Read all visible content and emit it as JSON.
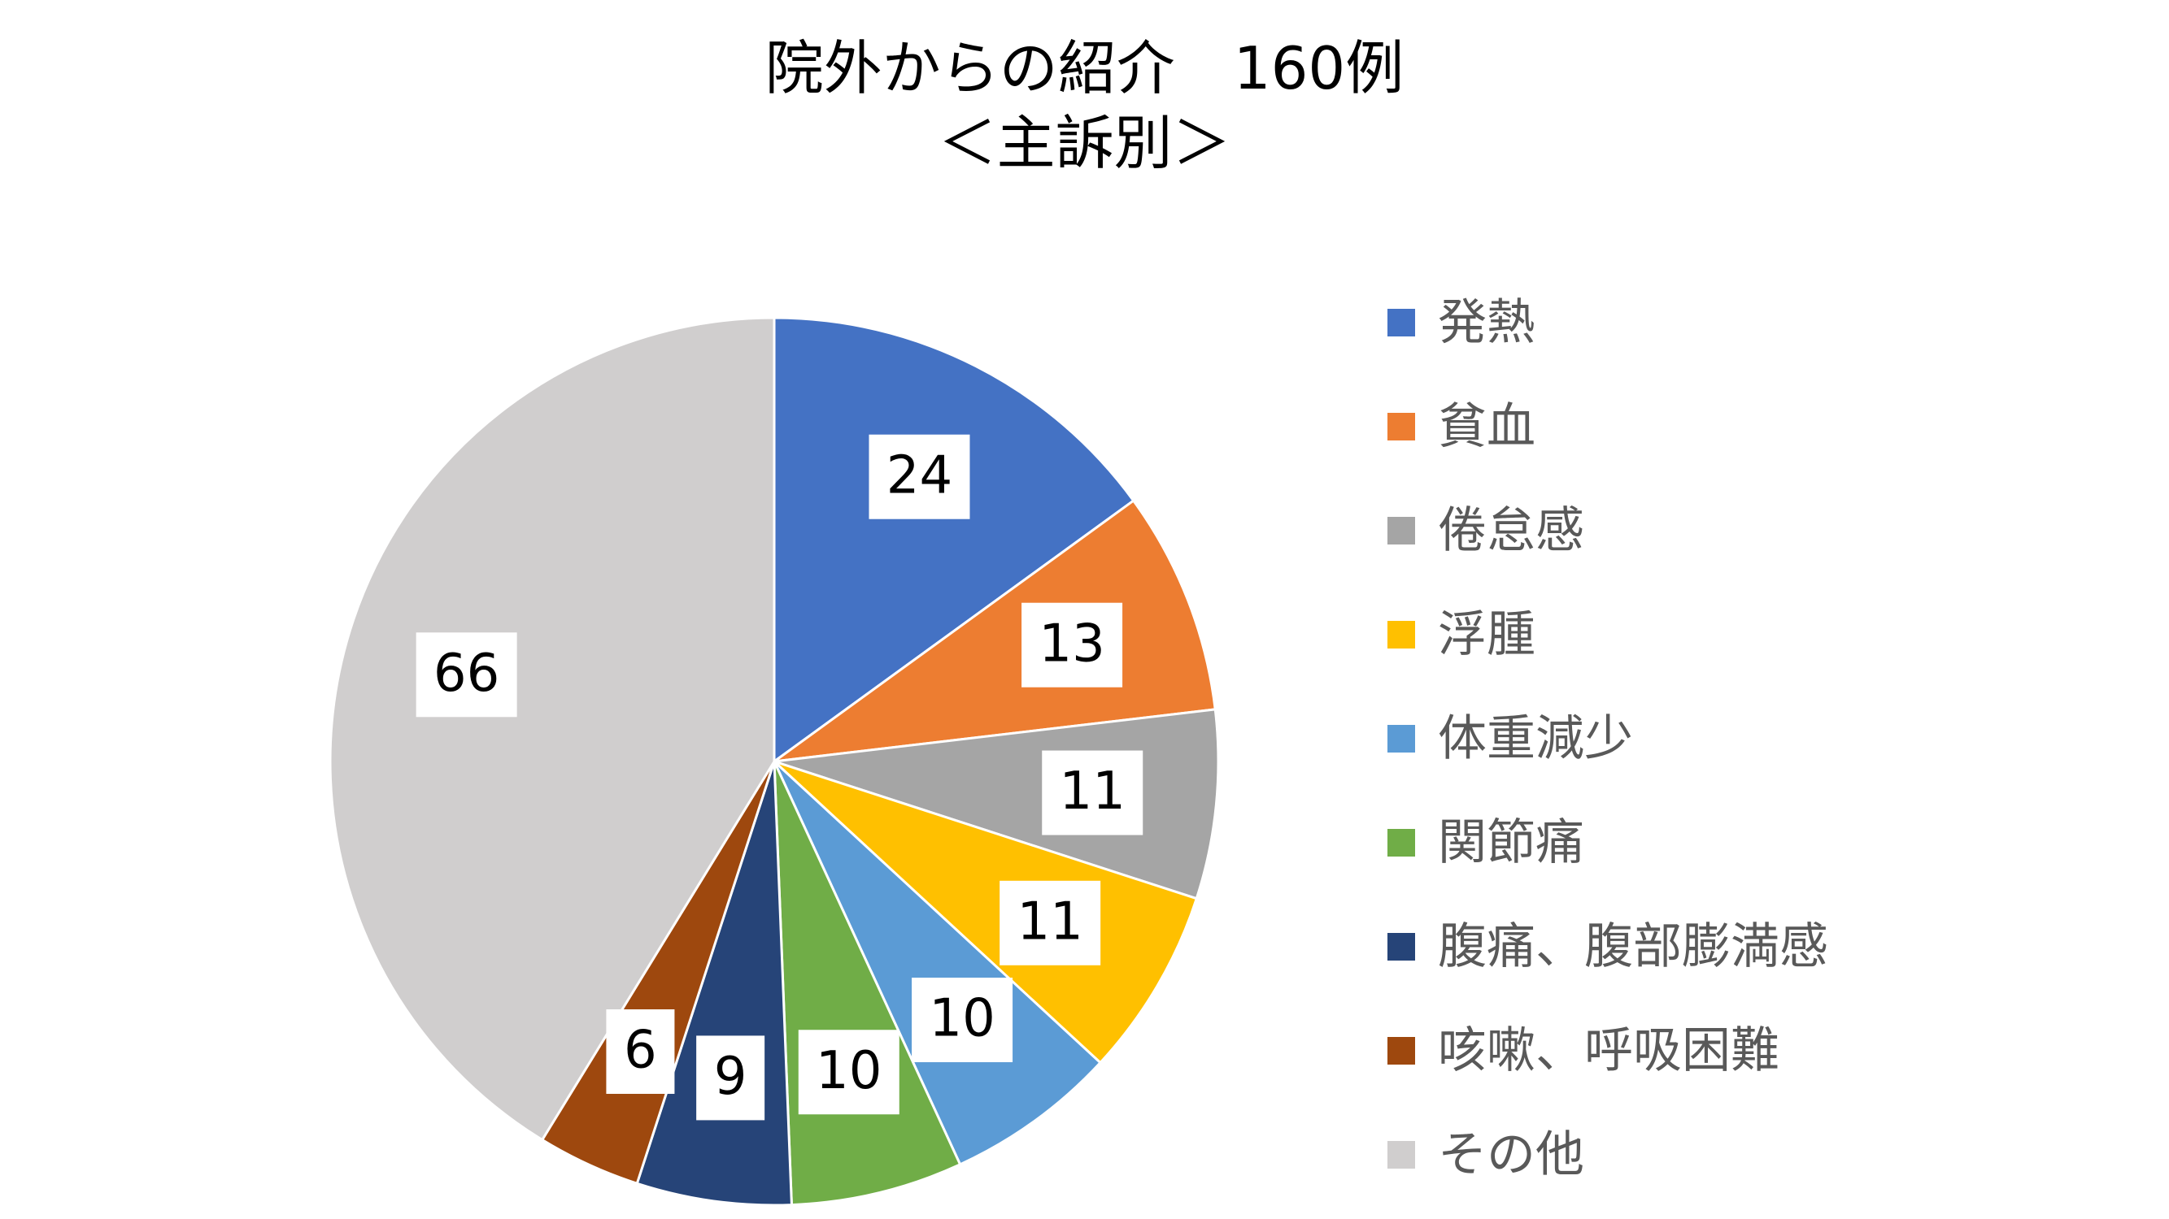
{
  "chart_data": {
    "type": "pie",
    "title": "院外からの紹介　160例",
    "subtitle": "＜主訴別＞",
    "start_angle_deg": 0,
    "direction": "clockwise",
    "legend_position": "right",
    "slices": [
      {
        "label": "発熱",
        "value": 24,
        "color": "#4472C4"
      },
      {
        "label": "貧血",
        "value": 13,
        "color": "#ED7D31"
      },
      {
        "label": "倦怠感",
        "value": 11,
        "color": "#A5A5A5"
      },
      {
        "label": "浮腫",
        "value": 11,
        "color": "#FFC000"
      },
      {
        "label": "体重減少",
        "value": 10,
        "color": "#5B9BD5"
      },
      {
        "label": "関節痛",
        "value": 10,
        "color": "#70AD47"
      },
      {
        "label": "腹痛、腹部膨満感",
        "value": 9,
        "color": "#264478"
      },
      {
        "label": "咳嗽、呼吸困難",
        "value": 6,
        "color": "#9E480E"
      },
      {
        "label": "その他",
        "value": 66,
        "color": "#D0CECE"
      }
    ]
  }
}
